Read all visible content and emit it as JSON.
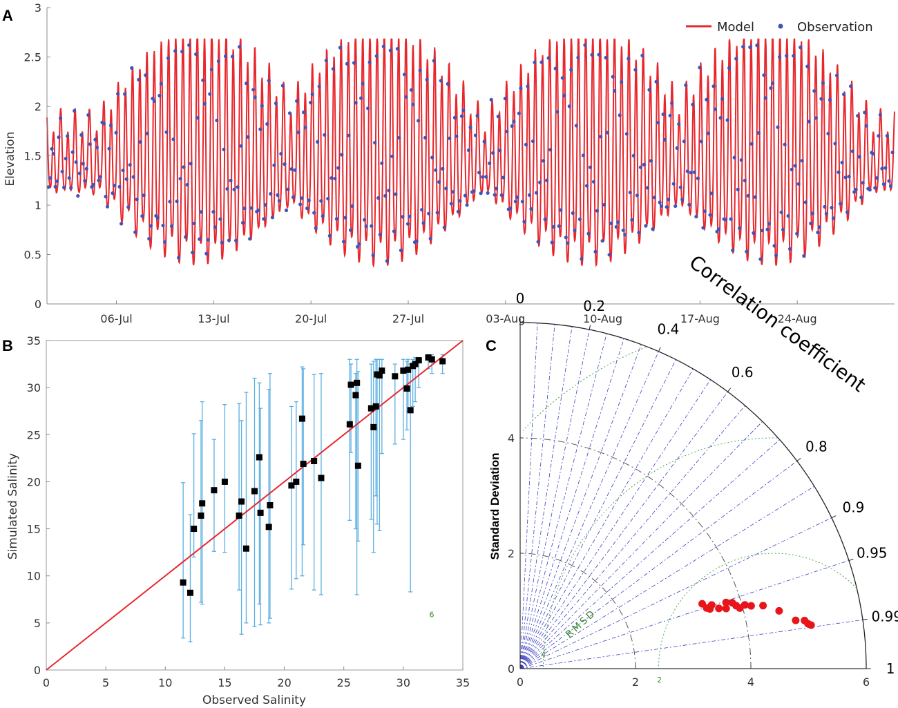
{
  "panels": {
    "a": "A",
    "b": "B",
    "c": "C"
  },
  "chart_data": [
    {
      "type": "line",
      "panel": "A",
      "ylabel": "Elevation",
      "ylim": [
        0,
        3
      ],
      "yticks": [
        0,
        0.5,
        1,
        1.5,
        2,
        2.5,
        3
      ],
      "ytick_labels": [
        "0",
        "0.5",
        "1",
        "1.5",
        "2",
        "2.5",
        "3"
      ],
      "xlim_days": [
        0,
        61
      ],
      "xtick_days": [
        5,
        12,
        19,
        26,
        33,
        40,
        47,
        54
      ],
      "xtick_labels": [
        "06-Jul",
        "13-Jul",
        "20-Jul",
        "27-Jul",
        "03-Aug",
        "10-Aug",
        "17-Aug",
        "24-Aug"
      ],
      "legend": {
        "model": "Model",
        "observation": "Observation",
        "placement": "top-right"
      },
      "series": [
        {
          "name": "Model",
          "style": "line",
          "color": "#e8262c",
          "description": "semi-diurnal tide, ~1.93 cycles/day, mean ~1.45, range up to ~2.7 at spring tides (about 12-Jul, 24-Jul, 24-Aug) and minima down to ~0.25"
        },
        {
          "name": "Observation",
          "style": "points",
          "color": "#3f55b8",
          "description": "hourly-ish observed elevation, similar pattern, minima ~0.3–0.5 at spring tides"
        }
      ],
      "tide_envelope": {
        "spring_peaks_day": [
          11,
          24,
          39,
          52
        ],
        "mean": 1.45,
        "amp_neap": 0.35,
        "amp_spring": 1.15
      }
    },
    {
      "type": "scatter",
      "panel": "B",
      "xlabel": "Observed Salinity",
      "ylabel": "Simulated Salinity",
      "xlim": [
        0,
        35
      ],
      "ylim": [
        0,
        35
      ],
      "xticks": [
        0,
        5,
        10,
        15,
        20,
        25,
        30,
        35
      ],
      "yticks": [
        0,
        5,
        10,
        15,
        20,
        25,
        30,
        35
      ],
      "tick_labels": [
        "0",
        "5",
        "10",
        "15",
        "20",
        "25",
        "30",
        "35"
      ],
      "one_to_one_line": true,
      "points": [
        [
          11.5,
          9.3,
          3.4,
          19.9
        ],
        [
          12.1,
          8.2,
          3.0,
          16.5
        ],
        [
          12.4,
          15.0,
          12.0,
          25.1
        ],
        [
          13.0,
          16.4,
          7.2,
          26.5
        ],
        [
          13.1,
          17.7,
          7.0,
          28.5
        ],
        [
          14.1,
          19.1,
          12.6,
          24.5
        ],
        [
          15.0,
          20.0,
          12.5,
          28.2
        ],
        [
          16.2,
          16.4,
          8.5,
          28.3
        ],
        [
          16.4,
          17.9,
          3.8,
          26.5
        ],
        [
          16.8,
          12.9,
          5.0,
          29.5
        ],
        [
          17.5,
          19.0,
          4.6,
          31.0
        ],
        [
          17.9,
          22.6,
          7.0,
          30.5
        ],
        [
          18.0,
          16.7,
          4.8,
          27.8
        ],
        [
          18.7,
          15.2,
          5.0,
          29.8
        ],
        [
          18.8,
          17.5,
          5.5,
          31.5
        ],
        [
          20.6,
          19.6,
          8.6,
          28.0
        ],
        [
          21.0,
          20.0,
          9.7,
          28.5
        ],
        [
          21.5,
          26.7,
          10.0,
          32.2
        ],
        [
          21.6,
          21.9,
          13.3,
          32.0
        ],
        [
          22.5,
          22.2,
          8.5,
          31.4
        ],
        [
          23.1,
          20.4,
          8.0,
          31.5
        ],
        [
          25.5,
          26.1,
          15.9,
          33.0
        ],
        [
          25.6,
          30.3,
          23.1,
          32.5
        ],
        [
          26.0,
          29.2,
          15.0,
          31.5
        ],
        [
          26.1,
          30.5,
          8.0,
          33.0
        ],
        [
          26.2,
          21.7,
          13.7,
          31.7
        ],
        [
          27.3,
          27.8,
          16.0,
          32.5
        ],
        [
          27.5,
          25.8,
          12.5,
          32.8
        ],
        [
          27.7,
          28.0,
          18.5,
          33.0
        ],
        [
          27.8,
          31.4,
          15.5,
          33.0
        ],
        [
          28.0,
          31.3,
          14.8,
          33.0
        ],
        [
          28.2,
          31.8,
          23.0,
          33.0
        ],
        [
          29.3,
          31.2,
          24.0,
          32.5
        ],
        [
          30.0,
          31.8,
          24.5,
          33.0
        ],
        [
          30.3,
          29.9,
          25.5,
          32.8
        ],
        [
          30.4,
          31.9,
          27.5,
          33.0
        ],
        [
          30.6,
          27.6,
          8.3,
          32.5
        ],
        [
          30.8,
          32.3,
          28.0,
          33.0
        ],
        [
          31.0,
          32.5,
          28.5,
          33.2
        ],
        [
          31.3,
          32.9,
          30.0,
          33.2
        ],
        [
          32.1,
          33.2,
          32.0,
          33.5
        ],
        [
          32.4,
          33.0,
          31.5,
          33.5
        ],
        [
          33.3,
          32.8,
          31.5,
          33.5
        ]
      ],
      "point_format": "[observed, simulated, error_low, error_high]"
    },
    {
      "type": "taylor",
      "panel": "C",
      "title": "Correlation coefficient",
      "ylabel": "Standard Deviation",
      "rlim": [
        0,
        6
      ],
      "xticks": [
        0,
        2,
        4,
        6
      ],
      "xtick_labels": [
        "0",
        "2",
        "4",
        "6"
      ],
      "yticks": [
        0,
        2,
        4
      ],
      "ytick_labels": [
        "0",
        "2",
        "4"
      ],
      "corr_ticks": [
        0,
        0.2,
        0.4,
        0.6,
        0.8,
        0.9,
        0.95,
        0.99,
        1
      ],
      "corr_tick_labels": [
        "0",
        "0.2",
        "0.4",
        "0.6",
        "0.8",
        "0.9",
        "0.95",
        "0.99",
        "1"
      ],
      "rmsd_ref_std": 4.4,
      "rmsd_circles": [
        2,
        4,
        6
      ],
      "rmsd_labels": [
        "2",
        "4",
        "6"
      ],
      "rmsd_title": "RMSD",
      "points_std_corr": [
        [
          3.35,
          0.942
        ],
        [
          3.4,
          0.951
        ],
        [
          3.45,
          0.954
        ],
        [
          3.5,
          0.949
        ],
        [
          3.72,
          0.96
        ],
        [
          3.85,
          0.955
        ],
        [
          3.9,
          0.96
        ],
        [
          4.05,
          0.962
        ],
        [
          4.15,
          0.965
        ],
        [
          4.35,
          0.968
        ],
        [
          4.6,
          0.976
        ],
        [
          4.85,
          0.985
        ],
        [
          5.0,
          0.986
        ],
        [
          5.05,
          0.988
        ],
        [
          5.1,
          0.989
        ],
        [
          3.6,
          0.957
        ],
        [
          3.95,
          0.964
        ],
        [
          3.75,
          0.952
        ]
      ]
    }
  ],
  "colors": {
    "model": "#e8262c",
    "observation": "#3f55b8",
    "errorbar": "#5aaee0",
    "marker": "#000000",
    "taylor_point": "#e8151b",
    "rays": "#3a3fc0",
    "rmsd": "#4aa84a"
  }
}
